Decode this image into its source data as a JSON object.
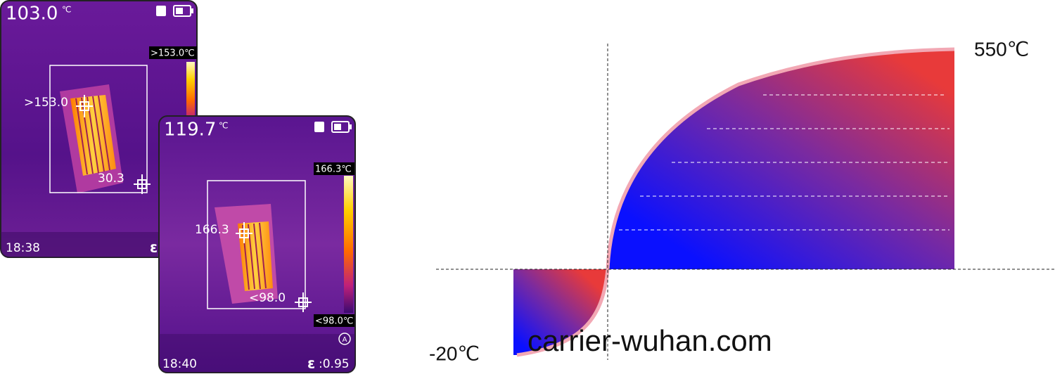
{
  "screens": [
    {
      "temperature": "103.0",
      "unit": "℃",
      "max_label": ">153.0℃",
      "spots": [
        ">153.0",
        "30.3"
      ],
      "time": "18:38",
      "emissivity_symbol": "ε"
    },
    {
      "temperature": "119.7",
      "unit": "℃",
      "max_label": "166.3℃",
      "min_label": "<98.0℃",
      "spots": [
        "166.3",
        "<98.0"
      ],
      "time": "18:40",
      "emissivity_symbol": "ε",
      "emissivity": ":0.95",
      "mode": "A"
    }
  ],
  "diagram": {
    "max_label": "550℃",
    "min_label": "-20℃",
    "watermark": "carrier-wuhan.com"
  }
}
